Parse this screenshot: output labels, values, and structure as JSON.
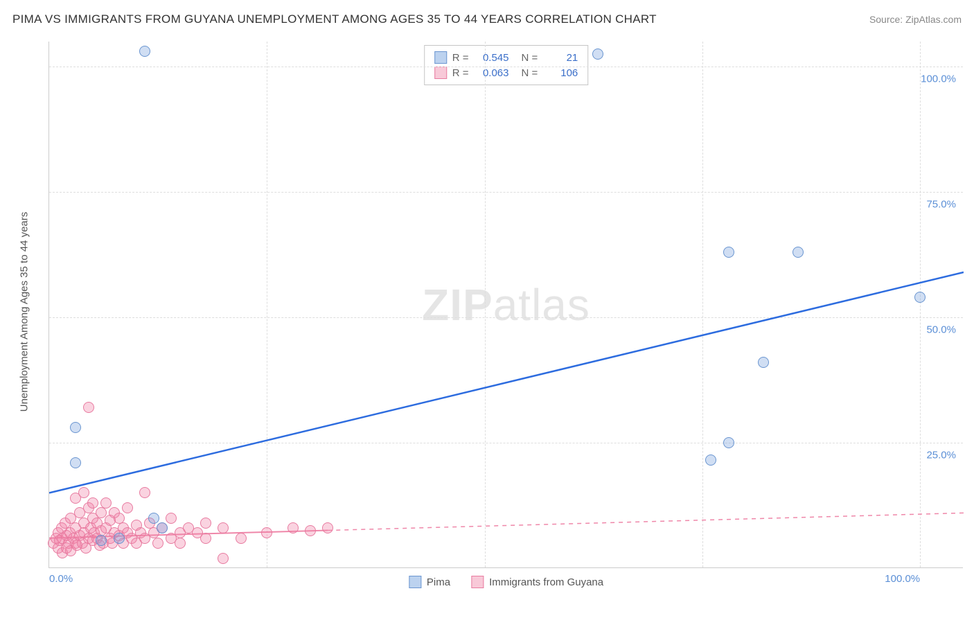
{
  "header": {
    "title": "PIMA VS IMMIGRANTS FROM GUYANA UNEMPLOYMENT AMONG AGES 35 TO 44 YEARS CORRELATION CHART",
    "source": "Source: ZipAtlas.com"
  },
  "watermark": {
    "prefix": "ZIP",
    "suffix": "atlas"
  },
  "chart": {
    "type": "scatter",
    "background_color": "#ffffff",
    "grid_color": "#dddddd",
    "axis_color": "#cccccc",
    "tick_label_color": "#5b8fd6",
    "axis_title_color": "#555555",
    "tick_fontsize": 15,
    "y_axis_title": "Unemployment Among Ages 35 to 44 years",
    "xlim": [
      0,
      105
    ],
    "ylim": [
      0,
      105
    ],
    "x_ticks": [
      {
        "v": 0,
        "label": "0.0%"
      },
      {
        "v": 25,
        "label": ""
      },
      {
        "v": 50,
        "label": ""
      },
      {
        "v": 75,
        "label": ""
      },
      {
        "v": 100,
        "label": "100.0%"
      }
    ],
    "y_ticks": [
      {
        "v": 25,
        "label": "25.0%"
      },
      {
        "v": 50,
        "label": "50.0%"
      },
      {
        "v": 75,
        "label": "75.0%"
      },
      {
        "v": 100,
        "label": "100.0%"
      }
    ],
    "marker_radius": 8,
    "marker_border_width": 1.5,
    "series": [
      {
        "name": "Pima",
        "fill_color": "rgba(120,160,220,0.35)",
        "stroke_color": "#6a95d0",
        "swatch_fill": "#bcd2ef",
        "swatch_border": "#6a95d0",
        "R": "0.545",
        "N": "21",
        "trend": {
          "x1": 0,
          "y1": 15,
          "x2": 105,
          "y2": 59,
          "color": "#2d6cdf",
          "width": 2.5,
          "dash": "none"
        },
        "points": [
          [
            3,
            21
          ],
          [
            3,
            28
          ],
          [
            11,
            103
          ],
          [
            12,
            10
          ],
          [
            13,
            8
          ],
          [
            8,
            6
          ],
          [
            6,
            5.5
          ],
          [
            63,
            102.5
          ],
          [
            76,
            21.5
          ],
          [
            78,
            25
          ],
          [
            78,
            63
          ],
          [
            82,
            41
          ],
          [
            86,
            63
          ],
          [
            100,
            54
          ]
        ]
      },
      {
        "name": "Immigrants from Guyana",
        "fill_color": "rgba(240,130,165,0.35)",
        "stroke_color": "#e87ba0",
        "swatch_fill": "#f8c9d8",
        "swatch_border": "#e87ba0",
        "R": "0.063",
        "N": "106",
        "trend": {
          "x1": 0,
          "y1": 6,
          "x2": 105,
          "y2": 11,
          "color": "#ef87a9",
          "width": 2,
          "dash": "solid_then_dash",
          "solid_until_x": 32
        },
        "points": [
          [
            0.5,
            5
          ],
          [
            0.8,
            6
          ],
          [
            1,
            4
          ],
          [
            1,
            7
          ],
          [
            1.2,
            5.5
          ],
          [
            1.4,
            8
          ],
          [
            1.5,
            3
          ],
          [
            1.5,
            6
          ],
          [
            1.8,
            9
          ],
          [
            2,
            4
          ],
          [
            2,
            6.5
          ],
          [
            2.2,
            5
          ],
          [
            2.4,
            7
          ],
          [
            2.5,
            3.5
          ],
          [
            2.5,
            10
          ],
          [
            2.8,
            6
          ],
          [
            3,
            5
          ],
          [
            3,
            8
          ],
          [
            3,
            14
          ],
          [
            3.2,
            4.5
          ],
          [
            3.5,
            6.5
          ],
          [
            3.5,
            11
          ],
          [
            3.8,
            5
          ],
          [
            4,
            7
          ],
          [
            4,
            9
          ],
          [
            4,
            15
          ],
          [
            4.2,
            4
          ],
          [
            4.5,
            6
          ],
          [
            4.5,
            12
          ],
          [
            4.8,
            8
          ],
          [
            5,
            5.5
          ],
          [
            5,
            10
          ],
          [
            5,
            13
          ],
          [
            5.2,
            7
          ],
          [
            5.5,
            6
          ],
          [
            5.5,
            9
          ],
          [
            5.8,
            4.5
          ],
          [
            6,
            7.5
          ],
          [
            6,
            11
          ],
          [
            6.2,
            5
          ],
          [
            6.5,
            8
          ],
          [
            6.5,
            13
          ],
          [
            4.5,
            32
          ],
          [
            7,
            6
          ],
          [
            7,
            9.5
          ],
          [
            7.2,
            5
          ],
          [
            7.5,
            7
          ],
          [
            7.5,
            11
          ],
          [
            8,
            6.5
          ],
          [
            8,
            10
          ],
          [
            8.5,
            5
          ],
          [
            8.5,
            8
          ],
          [
            9,
            7
          ],
          [
            9,
            12
          ],
          [
            9.5,
            6
          ],
          [
            10,
            8.5
          ],
          [
            10,
            5
          ],
          [
            10.5,
            7
          ],
          [
            11,
            15
          ],
          [
            11,
            6
          ],
          [
            11.5,
            9
          ],
          [
            12,
            7
          ],
          [
            12.5,
            5
          ],
          [
            13,
            8
          ],
          [
            14,
            6
          ],
          [
            14,
            10
          ],
          [
            15,
            7
          ],
          [
            15,
            5
          ],
          [
            16,
            8
          ],
          [
            17,
            7
          ],
          [
            18,
            6
          ],
          [
            18,
            9
          ],
          [
            20,
            2
          ],
          [
            20,
            8
          ],
          [
            22,
            6
          ],
          [
            25,
            7
          ],
          [
            28,
            8
          ],
          [
            30,
            7.5
          ],
          [
            32,
            8
          ]
        ]
      }
    ],
    "bottom_legend": [
      {
        "label": "Pima",
        "swatch_fill": "#bcd2ef",
        "swatch_border": "#6a95d0"
      },
      {
        "label": "Immigrants from Guyana",
        "swatch_fill": "#f8c9d8",
        "swatch_border": "#e87ba0"
      }
    ]
  }
}
